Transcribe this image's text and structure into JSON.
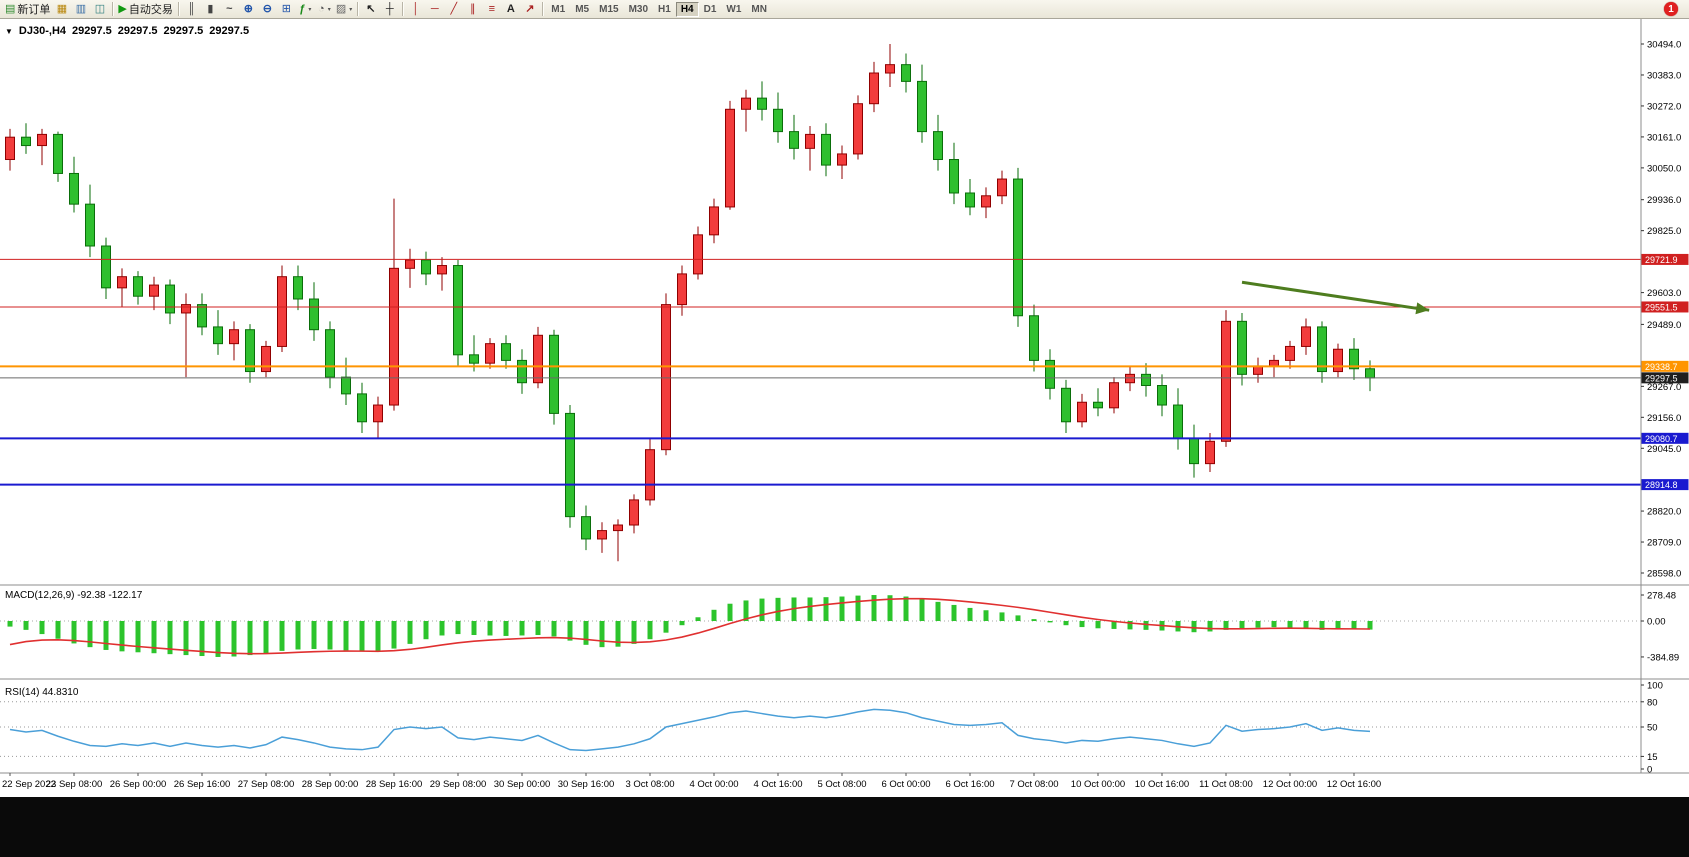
{
  "toolbar": {
    "timeframes": [
      "M1",
      "M5",
      "M15",
      "M30",
      "H1",
      "H4",
      "D1",
      "W1",
      "MN"
    ],
    "active_timeframe": "H4",
    "notification_badge": "1",
    "items": [
      {
        "type": "button",
        "name": "new-order",
        "icon": "doc-plus",
        "label": "新订单"
      },
      {
        "type": "button",
        "name": "new-chart",
        "icon": "chart-grid"
      },
      {
        "type": "button",
        "name": "profiles",
        "icon": "profiles"
      },
      {
        "type": "button",
        "name": "data-window",
        "icon": "data-window"
      },
      {
        "type": "sep"
      },
      {
        "type": "button",
        "name": "auto-trading",
        "icon": "play",
        "label": "自动交易"
      },
      {
        "type": "sep"
      },
      {
        "type": "button",
        "name": "bar-chart",
        "icon": "bars"
      },
      {
        "type": "button",
        "name": "candlestick-chart",
        "icon": "candles"
      },
      {
        "type": "button",
        "name": "line-chart",
        "icon": "line"
      },
      {
        "type": "button",
        "name": "zoom-in",
        "icon": "zoom-in"
      },
      {
        "type": "button",
        "name": "zoom-out",
        "icon": "zoom-out"
      },
      {
        "type": "button",
        "name": "tile-windows",
        "icon": "tiles"
      },
      {
        "type": "button",
        "name": "indicators",
        "icon": "func",
        "caret": true
      },
      {
        "type": "button",
        "name": "periods",
        "icon": "clock",
        "caret": true
      },
      {
        "type": "button",
        "name": "templates",
        "icon": "template",
        "caret": true
      },
      {
        "type": "sep"
      },
      {
        "type": "button",
        "name": "cursor",
        "icon": "cursor"
      },
      {
        "type": "button",
        "name": "crosshair",
        "icon": "crosshair"
      },
      {
        "type": "sep"
      },
      {
        "type": "button",
        "name": "vertical-line",
        "icon": "vline"
      },
      {
        "type": "button",
        "name": "horizontal-line",
        "icon": "hline"
      },
      {
        "type": "button",
        "name": "trendline",
        "icon": "trendline"
      },
      {
        "type": "button",
        "name": "equidistant-channel",
        "icon": "channel"
      },
      {
        "type": "button",
        "name": "fibonacci",
        "icon": "fibo"
      },
      {
        "type": "button",
        "name": "text",
        "icon": "text"
      },
      {
        "type": "button",
        "name": "arrows",
        "icon": "arrow"
      },
      {
        "type": "sep"
      },
      {
        "type": "timeframes"
      }
    ],
    "icons": {
      "doc-plus": {
        "g": "▤",
        "c": "#2e8b2e"
      },
      "chart-grid": {
        "g": "▦",
        "c": "#b8860b"
      },
      "profiles": {
        "g": "▥",
        "c": "#3a6ea5"
      },
      "data-window": {
        "g": "◫",
        "c": "#2f7f7f"
      },
      "play": {
        "g": "▶",
        "c": "#119911"
      },
      "bars": {
        "g": "║",
        "c": "#444444"
      },
      "candles": {
        "g": "▮",
        "c": "#444444"
      },
      "line": {
        "g": "~",
        "c": "#444444",
        "b": true
      },
      "zoom-in": {
        "g": "⊕",
        "c": "#2255aa",
        "b": true
      },
      "zoom-out": {
        "g": "⊖",
        "c": "#2255aa",
        "b": true
      },
      "tiles": {
        "g": "⊞",
        "c": "#2255aa"
      },
      "func": {
        "g": "ƒ",
        "c": "#1a8a1a",
        "b": true
      },
      "clock": {
        "g": "◔",
        "c": "#555555"
      },
      "template": {
        "g": "▨",
        "c": "#666666"
      },
      "cursor": {
        "g": "↖",
        "c": "#222222",
        "b": true
      },
      "crosshair": {
        "g": "┼",
        "c": "#222222"
      },
      "vline": {
        "g": "│",
        "c": "#aa2222"
      },
      "hline": {
        "g": "─",
        "c": "#aa2222"
      },
      "trendline": {
        "g": "╱",
        "c": "#aa2222"
      },
      "channel": {
        "g": "∥",
        "c": "#aa2222"
      },
      "fibo": {
        "g": "≡",
        "c": "#aa2222"
      },
      "text": {
        "g": "A",
        "c": "#222222",
        "b": true
      },
      "arrow": {
        "g": "↗",
        "c": "#aa2222",
        "b": true
      }
    }
  },
  "colors": {
    "up_fill": "#f23c3c",
    "up_stroke": "#900000",
    "down_fill": "#2fbf2f",
    "down_stroke": "#0a6e0a"
  },
  "chart": {
    "title": "DJ30-,H4",
    "ohlc": [
      "29297.5",
      "29297.5",
      "29297.5",
      "29297.5"
    ],
    "price_axis_ticks": [
      30494,
      30383,
      30272,
      30161,
      30050,
      29936,
      29825,
      29603,
      29489,
      29267,
      29156,
      29045,
      28820,
      28709,
      28598
    ],
    "levels": [
      {
        "name": "resistance-line-upper",
        "price": 29721.9,
        "label": "29721.9",
        "color": "#d02020",
        "bg": "#d02020",
        "width": 1
      },
      {
        "name": "resistance-line-lower",
        "price": 29551.5,
        "label": "29551.5",
        "color": "#d02020",
        "bg": "#d02020",
        "width": 1
      },
      {
        "name": "pivot-line-orange",
        "price": 29338.7,
        "label": "29338.7",
        "color": "#ff9500",
        "bg": "#ff9500",
        "width": 2
      },
      {
        "name": "bid-price-line",
        "price": 29297.5,
        "label": "29297.5",
        "color": "#6a6a6a",
        "bg": "#1f1f1f",
        "width": 1
      },
      {
        "name": "support-line-upper",
        "price": 29080.7,
        "label": "29080.7",
        "color": "#1a1ad0",
        "bg": "#1a1ad0",
        "width": 2
      },
      {
        "name": "support-line-lower",
        "price": 28914.8,
        "label": "28914.8",
        "color": "#1a1ad0",
        "bg": "#1a1ad0",
        "width": 2
      }
    ],
    "arrow": {
      "from_index": 77,
      "from_price": 29640,
      "to_index": 88.7,
      "to_price": 29540,
      "color": "#4e7d1f"
    },
    "time_labels": [
      {
        "i": 0,
        "t": "22 Sep 2022"
      },
      {
        "i": 4,
        "t": "23 Sep 08:00"
      },
      {
        "i": 8,
        "t": "26 Sep 00:00"
      },
      {
        "i": 12,
        "t": "26 Sep 16:00"
      },
      {
        "i": 16,
        "t": "27 Sep 08:00"
      },
      {
        "i": 20,
        "t": "28 Sep 00:00"
      },
      {
        "i": 24,
        "t": "28 Sep 16:00"
      },
      {
        "i": 28,
        "t": "29 Sep 08:00"
      },
      {
        "i": 32,
        "t": "30 Sep 00:00"
      },
      {
        "i": 36,
        "t": "30 Sep 16:00"
      },
      {
        "i": 40,
        "t": "3 Oct 08:00"
      },
      {
        "i": 44,
        "t": "4 Oct 00:00"
      },
      {
        "i": 48,
        "t": "4 Oct 16:00"
      },
      {
        "i": 52,
        "t": "5 Oct 08:00"
      },
      {
        "i": 56,
        "t": "6 Oct 00:00"
      },
      {
        "i": 60,
        "t": "6 Oct 16:00"
      },
      {
        "i": 64,
        "t": "7 Oct 08:00"
      },
      {
        "i": 68,
        "t": "10 Oct 00:00"
      },
      {
        "i": 72,
        "t": "10 Oct 16:00"
      },
      {
        "i": 76,
        "t": "11 Oct 08:00"
      },
      {
        "i": 80,
        "t": "12 Oct 00:00"
      },
      {
        "i": 84,
        "t": "12 Oct 16:00"
      }
    ],
    "candles": [
      [
        30080,
        30190,
        30040,
        30160
      ],
      [
        30160,
        30210,
        30100,
        30130
      ],
      [
        30130,
        30190,
        30060,
        30170
      ],
      [
        30170,
        30180,
        30000,
        30030
      ],
      [
        30030,
        30090,
        29890,
        29920
      ],
      [
        29920,
        29990,
        29730,
        29770
      ],
      [
        29770,
        29800,
        29580,
        29620
      ],
      [
        29620,
        29690,
        29550,
        29660
      ],
      [
        29660,
        29680,
        29560,
        29590
      ],
      [
        29590,
        29660,
        29540,
        29630
      ],
      [
        29630,
        29650,
        29490,
        29530
      ],
      [
        29530,
        29600,
        29300,
        29560
      ],
      [
        29560,
        29600,
        29450,
        29480
      ],
      [
        29480,
        29540,
        29380,
        29420
      ],
      [
        29420,
        29500,
        29360,
        29470
      ],
      [
        29470,
        29490,
        29280,
        29320
      ],
      [
        29320,
        29430,
        29300,
        29410
      ],
      [
        29410,
        29700,
        29390,
        29660
      ],
      [
        29660,
        29700,
        29540,
        29580
      ],
      [
        29580,
        29640,
        29430,
        29470
      ],
      [
        29470,
        29500,
        29260,
        29300
      ],
      [
        29300,
        29370,
        29200,
        29240
      ],
      [
        29240,
        29280,
        29100,
        29140
      ],
      [
        29140,
        29230,
        29080,
        29200
      ],
      [
        29200,
        29940,
        29180,
        29690
      ],
      [
        29690,
        29760,
        29620,
        29720
      ],
      [
        29720,
        29750,
        29630,
        29670
      ],
      [
        29670,
        29730,
        29610,
        29700
      ],
      [
        29700,
        29720,
        29340,
        29380
      ],
      [
        29380,
        29450,
        29320,
        29350
      ],
      [
        29350,
        29440,
        29330,
        29420
      ],
      [
        29420,
        29450,
        29330,
        29360
      ],
      [
        29360,
        29400,
        29240,
        29280
      ],
      [
        29280,
        29480,
        29260,
        29450
      ],
      [
        29450,
        29470,
        29130,
        29170
      ],
      [
        29170,
        29200,
        28760,
        28800
      ],
      [
        28800,
        28840,
        28680,
        28720
      ],
      [
        28720,
        28780,
        28670,
        28750
      ],
      [
        28750,
        28790,
        28640,
        28770
      ],
      [
        28770,
        28880,
        28740,
        28860
      ],
      [
        28860,
        29080,
        28840,
        29040
      ],
      [
        29040,
        29600,
        29020,
        29560
      ],
      [
        29560,
        29700,
        29520,
        29670
      ],
      [
        29670,
        29840,
        29650,
        29810
      ],
      [
        29810,
        29940,
        29780,
        29910
      ],
      [
        29910,
        30290,
        29900,
        30260
      ],
      [
        30260,
        30330,
        30180,
        30300
      ],
      [
        30300,
        30360,
        30220,
        30260
      ],
      [
        30260,
        30320,
        30140,
        30180
      ],
      [
        30180,
        30240,
        30080,
        30120
      ],
      [
        30120,
        30200,
        30040,
        30170
      ],
      [
        30170,
        30210,
        30020,
        30060
      ],
      [
        30060,
        30130,
        30010,
        30100
      ],
      [
        30100,
        30310,
        30080,
        30280
      ],
      [
        30280,
        30430,
        30250,
        30390
      ],
      [
        30390,
        30494,
        30340,
        30420
      ],
      [
        30420,
        30460,
        30320,
        30360
      ],
      [
        30360,
        30420,
        30140,
        30180
      ],
      [
        30180,
        30240,
        30040,
        30080
      ],
      [
        30080,
        30140,
        29920,
        29960
      ],
      [
        29960,
        30010,
        29880,
        29910
      ],
      [
        29910,
        29980,
        29870,
        29950
      ],
      [
        29950,
        30040,
        29920,
        30010
      ],
      [
        30010,
        30050,
        29480,
        29520
      ],
      [
        29520,
        29560,
        29320,
        29360
      ],
      [
        29360,
        29400,
        29220,
        29260
      ],
      [
        29260,
        29290,
        29100,
        29140
      ],
      [
        29140,
        29240,
        29120,
        29210
      ],
      [
        29210,
        29260,
        29160,
        29190
      ],
      [
        29190,
        29300,
        29170,
        29280
      ],
      [
        29280,
        29340,
        29250,
        29310
      ],
      [
        29310,
        29350,
        29230,
        29270
      ],
      [
        29270,
        29310,
        29160,
        29200
      ],
      [
        29200,
        29260,
        29040,
        29080
      ],
      [
        29080,
        29130,
        28940,
        28990
      ],
      [
        28990,
        29100,
        28960,
        29070
      ],
      [
        29070,
        29540,
        29050,
        29500
      ],
      [
        29500,
        29530,
        29270,
        29310
      ],
      [
        29310,
        29370,
        29280,
        29340
      ],
      [
        29340,
        29380,
        29300,
        29360
      ],
      [
        29360,
        29430,
        29330,
        29410
      ],
      [
        29410,
        29510,
        29380,
        29480
      ],
      [
        29480,
        29500,
        29280,
        29320
      ],
      [
        29320,
        29420,
        29300,
        29400
      ],
      [
        29400,
        29440,
        29290,
        29330
      ],
      [
        29330,
        29360,
        29250,
        29297.5
      ]
    ]
  },
  "macd": {
    "label": "MACD(12,26,9)",
    "value_main": "-92.38",
    "value_signal": "-122.17",
    "axis": [
      {
        "v": 278.48,
        "t": "278.48"
      },
      {
        "v": 0,
        "t": "0.00"
      },
      {
        "v": -384.89,
        "t": "-384.89"
      }
    ],
    "hist_color": "#2cc42c",
    "signal_color": "#e03030",
    "histogram": [
      -60,
      -95,
      -140,
      -190,
      -240,
      -280,
      -310,
      -325,
      -335,
      -345,
      -355,
      -365,
      -375,
      -385,
      -380,
      -365,
      -345,
      -320,
      -305,
      -300,
      -305,
      -315,
      -325,
      -330,
      -295,
      -245,
      -195,
      -155,
      -140,
      -150,
      -155,
      -160,
      -155,
      -150,
      -165,
      -210,
      -255,
      -280,
      -275,
      -245,
      -195,
      -125,
      -45,
      40,
      120,
      185,
      220,
      240,
      248,
      252,
      252,
      255,
      262,
      272,
      278,
      276,
      262,
      238,
      205,
      172,
      140,
      115,
      92,
      60,
      20,
      -15,
      -45,
      -65,
      -78,
      -85,
      -90,
      -95,
      -102,
      -112,
      -120,
      -112,
      -95,
      -82,
      -72,
      -66,
      -70,
      -85,
      -95,
      -90,
      -88,
      -92
    ]
  },
  "rsi": {
    "label": "RSI(14)",
    "value": "44.8310",
    "axis": [
      100,
      80,
      50,
      15,
      0
    ],
    "levels": [
      80,
      50,
      15
    ],
    "color": "#4a9fd8",
    "series": [
      47,
      44,
      46,
      39,
      33,
      28,
      27,
      30,
      28,
      31,
      27,
      31,
      28,
      26,
      28,
      25,
      29,
      38,
      35,
      31,
      26,
      24,
      23,
      26,
      47,
      50,
      48,
      50,
      37,
      35,
      38,
      36,
      34,
      40,
      31,
      23,
      22,
      24,
      26,
      30,
      36,
      50,
      54,
      58,
      62,
      67,
      69,
      66,
      63,
      61,
      63,
      61,
      64,
      68,
      71,
      70,
      67,
      61,
      57,
      53,
      52,
      53,
      55,
      40,
      36,
      34,
      31,
      34,
      33,
      36,
      38,
      36,
      34,
      30,
      27,
      31,
      52,
      45,
      47,
      48,
      50,
      54,
      46,
      49,
      46,
      44.83
    ]
  }
}
